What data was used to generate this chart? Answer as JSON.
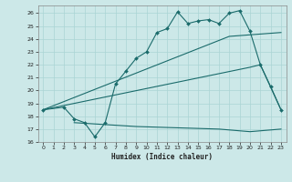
{
  "bg_color": "#cce8e8",
  "grid_color": "#aad4d4",
  "line_color": "#1a6b6b",
  "xlabel": "Humidex (Indice chaleur)",
  "xlim": [
    -0.5,
    23.5
  ],
  "ylim": [
    16.0,
    26.6
  ],
  "yticks": [
    16,
    17,
    18,
    19,
    20,
    21,
    22,
    23,
    24,
    25,
    26
  ],
  "xticks": [
    0,
    1,
    2,
    3,
    4,
    5,
    6,
    7,
    8,
    9,
    10,
    11,
    12,
    13,
    14,
    15,
    16,
    17,
    18,
    19,
    20,
    21,
    22,
    23
  ],
  "line1_x": [
    0,
    2,
    3,
    4,
    5,
    6,
    7,
    8,
    9,
    10,
    11,
    12,
    13,
    14,
    15,
    16,
    17,
    18,
    19,
    20,
    21,
    22,
    23
  ],
  "line1_y": [
    18.5,
    18.7,
    17.8,
    17.5,
    16.4,
    17.5,
    20.5,
    21.5,
    22.5,
    23.0,
    24.5,
    24.8,
    26.1,
    25.2,
    25.4,
    25.5,
    25.2,
    26.0,
    26.2,
    24.6,
    22.0,
    20.3,
    18.5
  ],
  "line2_x": [
    0,
    18,
    23
  ],
  "line2_y": [
    18.5,
    24.2,
    24.5
  ],
  "line3_x": [
    0,
    20,
    21,
    23
  ],
  "line3_y": [
    18.5,
    21.8,
    22.0,
    18.5
  ],
  "line4_x": [
    3,
    9,
    17,
    20,
    23
  ],
  "line4_y": [
    17.5,
    17.2,
    17.0,
    16.8,
    17.0
  ]
}
